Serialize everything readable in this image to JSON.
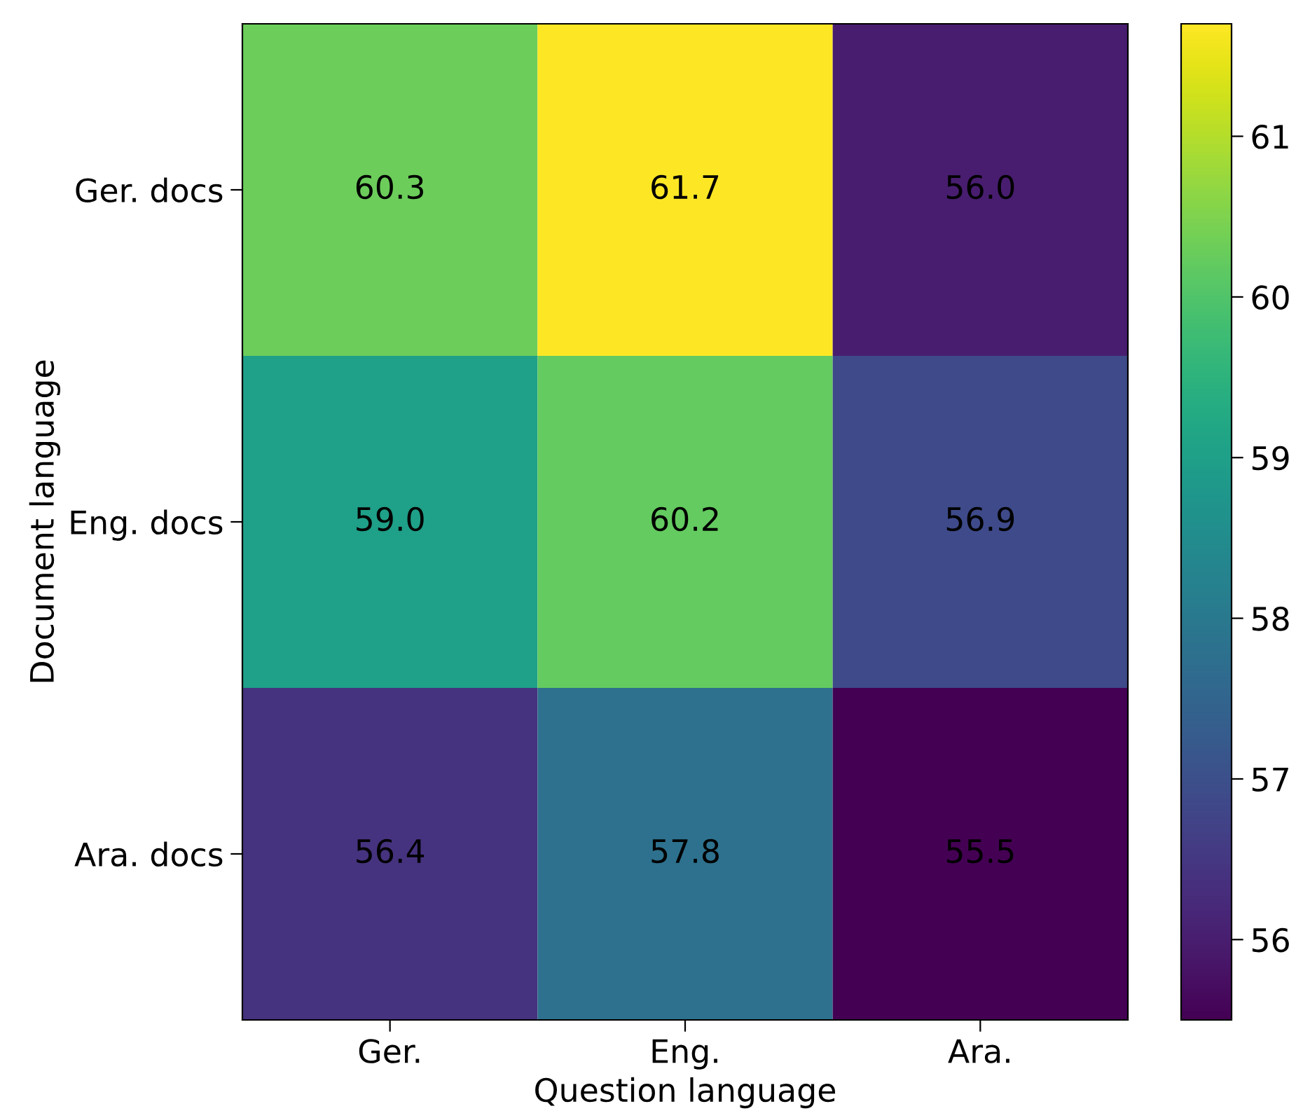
{
  "chart_data": {
    "type": "heatmap",
    "xlabel": "Question language",
    "ylabel": "Document language",
    "categories": [
      "Ger.",
      "Eng.",
      "Ara."
    ],
    "y_categories": [
      "Ger. docs",
      "Eng. docs",
      "Ara. docs"
    ],
    "cells": [
      [
        60.3,
        61.7,
        56.0
      ],
      [
        59.0,
        60.2,
        56.9
      ],
      [
        56.4,
        57.8,
        55.5
      ]
    ],
    "cell_labels": [
      [
        "60.3",
        "61.7",
        "56.0"
      ],
      [
        "59.0",
        "60.2",
        "56.9"
      ],
      [
        "56.4",
        "57.8",
        "55.5"
      ]
    ],
    "clim": [
      55.5,
      61.7
    ],
    "cticks": [
      56,
      57,
      58,
      59,
      60,
      61
    ]
  }
}
